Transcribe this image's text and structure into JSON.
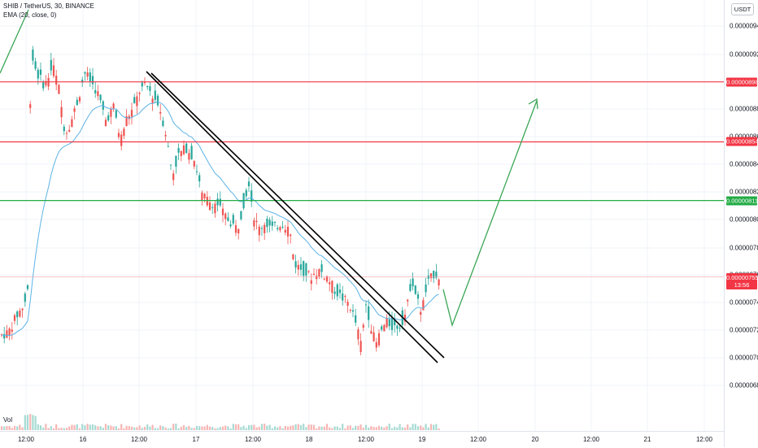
{
  "symbol_line": "SHIB / TetherUS, 30, BINANCE",
  "indicator_line": "EMA (20, close, 0)",
  "volume_label": "Vol",
  "currency": "USDT",
  "price_axis": {
    "min": 6.6e-06,
    "max": 9.58e-06,
    "ticks": [
      "0.00000940",
      "0.00000920",
      "0.00000880",
      "0.00000860",
      "0.00000840",
      "0.00000820",
      "0.00000800",
      "0.00000780",
      "0.00000760",
      "0.00000740",
      "0.00000720",
      "0.00000700",
      "0.00000680"
    ]
  },
  "levels": [
    {
      "label": "0.00000898",
      "price": 8.98e-06,
      "color": "#f23645"
    },
    {
      "label": "0.00000854",
      "price": 8.54e-06,
      "color": "#f23645"
    },
    {
      "label": "0.00000811",
      "price": 8.11e-06,
      "color": "#22ab45"
    }
  ],
  "last_price": {
    "label": "0.00000755",
    "price": 7.55e-06,
    "countdown": "13:56",
    "color": "#f23645"
  },
  "time_axis": [
    "12:00",
    "16",
    "12:00",
    "17",
    "12:00",
    "18",
    "12:00",
    "19",
    "12:00",
    "20",
    "12:00",
    "21",
    "12:00"
  ],
  "colors": {
    "up": "#26a69a",
    "down": "#ef5350",
    "ema": "#5cb3e6",
    "projection": "#3aa655"
  }
}
